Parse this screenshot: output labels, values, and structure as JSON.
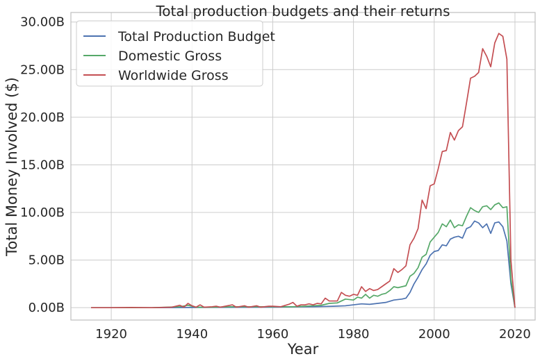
{
  "chart_data": {
    "type": "line",
    "title": "Total production budgets and their returns",
    "xlabel": "Year",
    "ylabel": "Total Money Involved ($)",
    "xlim": [
      1910,
      2025
    ],
    "ylim": [
      -1.3,
      31.0
    ],
    "y_units": "billions of dollars",
    "grid": true,
    "legend_position": "top-left",
    "x_ticks": [
      1920,
      1940,
      1960,
      1980,
      2000,
      2020
    ],
    "x_tick_labels": [
      "1920",
      "1940",
      "1960",
      "1980",
      "2000",
      "2020"
    ],
    "y_ticks": [
      0,
      5,
      10,
      15,
      20,
      25,
      30
    ],
    "y_tick_labels": [
      "0.00B",
      "5.00B",
      "10.00B",
      "15.00B",
      "20.00B",
      "25.00B",
      "30.00B"
    ],
    "series": [
      {
        "name": "Total Production Budget",
        "color": "#4c72b0",
        "points": [
          [
            1915,
            0.0
          ],
          [
            1930,
            0.0
          ],
          [
            1945,
            0.03
          ],
          [
            1960,
            0.06
          ],
          [
            1965,
            0.08
          ],
          [
            1970,
            0.1
          ],
          [
            1975,
            0.15
          ],
          [
            1978,
            0.2
          ],
          [
            1980,
            0.3
          ],
          [
            1982,
            0.4
          ],
          [
            1984,
            0.35
          ],
          [
            1986,
            0.45
          ],
          [
            1988,
            0.55
          ],
          [
            1990,
            0.8
          ],
          [
            1992,
            0.9
          ],
          [
            1993,
            1.0
          ],
          [
            1994,
            1.6
          ],
          [
            1995,
            2.5
          ],
          [
            1996,
            3.2
          ],
          [
            1997,
            4.0
          ],
          [
            1998,
            4.6
          ],
          [
            1999,
            5.5
          ],
          [
            2000,
            5.9
          ],
          [
            2001,
            6.0
          ],
          [
            2002,
            6.6
          ],
          [
            2003,
            6.5
          ],
          [
            2004,
            7.2
          ],
          [
            2005,
            7.4
          ],
          [
            2006,
            7.5
          ],
          [
            2007,
            7.3
          ],
          [
            2008,
            8.3
          ],
          [
            2009,
            8.5
          ],
          [
            2010,
            9.1
          ],
          [
            2011,
            8.9
          ],
          [
            2012,
            8.4
          ],
          [
            2013,
            8.8
          ],
          [
            2014,
            7.8
          ],
          [
            2015,
            8.9
          ],
          [
            2016,
            9.0
          ],
          [
            2017,
            8.5
          ],
          [
            2018,
            7.0
          ],
          [
            2019,
            2.5
          ],
          [
            2020,
            0.0
          ]
        ]
      },
      {
        "name": "Domestic Gross",
        "color": "#55a868",
        "points": [
          [
            1915,
            0.0
          ],
          [
            1930,
            0.0
          ],
          [
            1937,
            0.1
          ],
          [
            1939,
            0.25
          ],
          [
            1941,
            0.05
          ],
          [
            1945,
            0.05
          ],
          [
            1950,
            0.1
          ],
          [
            1955,
            0.1
          ],
          [
            1960,
            0.1
          ],
          [
            1965,
            0.1
          ],
          [
            1968,
            0.15
          ],
          [
            1970,
            0.2
          ],
          [
            1972,
            0.25
          ],
          [
            1974,
            0.45
          ],
          [
            1976,
            0.5
          ],
          [
            1978,
            0.9
          ],
          [
            1980,
            0.8
          ],
          [
            1981,
            1.1
          ],
          [
            1982,
            1.0
          ],
          [
            1983,
            1.4
          ],
          [
            1984,
            1.0
          ],
          [
            1985,
            1.3
          ],
          [
            1986,
            1.2
          ],
          [
            1987,
            1.4
          ],
          [
            1988,
            1.5
          ],
          [
            1989,
            1.8
          ],
          [
            1990,
            2.2
          ],
          [
            1991,
            2.1
          ],
          [
            1992,
            2.2
          ],
          [
            1993,
            2.3
          ],
          [
            1994,
            3.3
          ],
          [
            1995,
            3.6
          ],
          [
            1996,
            4.2
          ],
          [
            1997,
            5.3
          ],
          [
            1998,
            5.6
          ],
          [
            1999,
            6.9
          ],
          [
            2000,
            7.4
          ],
          [
            2001,
            7.9
          ],
          [
            2002,
            8.8
          ],
          [
            2003,
            8.5
          ],
          [
            2004,
            9.2
          ],
          [
            2005,
            8.4
          ],
          [
            2006,
            8.7
          ],
          [
            2007,
            8.6
          ],
          [
            2008,
            9.6
          ],
          [
            2009,
            10.5
          ],
          [
            2010,
            10.2
          ],
          [
            2011,
            10.0
          ],
          [
            2012,
            10.6
          ],
          [
            2013,
            10.7
          ],
          [
            2014,
            10.3
          ],
          [
            2015,
            10.8
          ],
          [
            2016,
            11.0
          ],
          [
            2017,
            10.5
          ],
          [
            2018,
            10.6
          ],
          [
            2019,
            3.0
          ],
          [
            2020,
            0.0
          ]
        ]
      },
      {
        "name": "Worldwide Gross",
        "color": "#c44e52",
        "points": [
          [
            1915,
            0.0
          ],
          [
            1920,
            0.0
          ],
          [
            1925,
            0.02
          ],
          [
            1930,
            0.0
          ],
          [
            1935,
            0.05
          ],
          [
            1937,
            0.25
          ],
          [
            1938,
            0.05
          ],
          [
            1939,
            0.45
          ],
          [
            1940,
            0.2
          ],
          [
            1941,
            0.05
          ],
          [
            1942,
            0.3
          ],
          [
            1943,
            0.05
          ],
          [
            1945,
            0.1
          ],
          [
            1946,
            0.15
          ],
          [
            1947,
            0.05
          ],
          [
            1950,
            0.3
          ],
          [
            1951,
            0.05
          ],
          [
            1953,
            0.2
          ],
          [
            1954,
            0.05
          ],
          [
            1956,
            0.2
          ],
          [
            1957,
            0.05
          ],
          [
            1959,
            0.15
          ],
          [
            1960,
            0.15
          ],
          [
            1962,
            0.1
          ],
          [
            1964,
            0.35
          ],
          [
            1965,
            0.55
          ],
          [
            1966,
            0.15
          ],
          [
            1967,
            0.3
          ],
          [
            1968,
            0.3
          ],
          [
            1969,
            0.4
          ],
          [
            1970,
            0.3
          ],
          [
            1971,
            0.45
          ],
          [
            1972,
            0.4
          ],
          [
            1973,
            1.0
          ],
          [
            1974,
            0.7
          ],
          [
            1975,
            0.7
          ],
          [
            1976,
            0.7
          ],
          [
            1977,
            1.6
          ],
          [
            1978,
            1.3
          ],
          [
            1979,
            1.2
          ],
          [
            1980,
            1.4
          ],
          [
            1981,
            1.3
          ],
          [
            1982,
            2.2
          ],
          [
            1983,
            1.7
          ],
          [
            1984,
            2.0
          ],
          [
            1985,
            1.8
          ],
          [
            1986,
            1.9
          ],
          [
            1987,
            2.2
          ],
          [
            1988,
            2.5
          ],
          [
            1989,
            2.8
          ],
          [
            1990,
            4.1
          ],
          [
            1991,
            3.7
          ],
          [
            1992,
            4.0
          ],
          [
            1993,
            4.4
          ],
          [
            1994,
            6.6
          ],
          [
            1995,
            7.3
          ],
          [
            1996,
            8.3
          ],
          [
            1997,
            11.3
          ],
          [
            1998,
            10.4
          ],
          [
            1999,
            12.8
          ],
          [
            2000,
            13.0
          ],
          [
            2001,
            14.6
          ],
          [
            2002,
            16.4
          ],
          [
            2003,
            16.5
          ],
          [
            2004,
            18.4
          ],
          [
            2005,
            17.6
          ],
          [
            2006,
            18.6
          ],
          [
            2007,
            19.0
          ],
          [
            2008,
            21.5
          ],
          [
            2009,
            24.1
          ],
          [
            2010,
            24.3
          ],
          [
            2011,
            24.7
          ],
          [
            2012,
            27.2
          ],
          [
            2013,
            26.4
          ],
          [
            2014,
            25.3
          ],
          [
            2015,
            27.8
          ],
          [
            2016,
            28.8
          ],
          [
            2017,
            28.5
          ],
          [
            2018,
            26.1
          ],
          [
            2019,
            5.0
          ],
          [
            2020,
            0.0
          ]
        ]
      }
    ]
  },
  "colors": {
    "background": "#ffffff",
    "grid": "#cccccc",
    "axes_edge": "#bfbfbf",
    "text": "#262626"
  }
}
